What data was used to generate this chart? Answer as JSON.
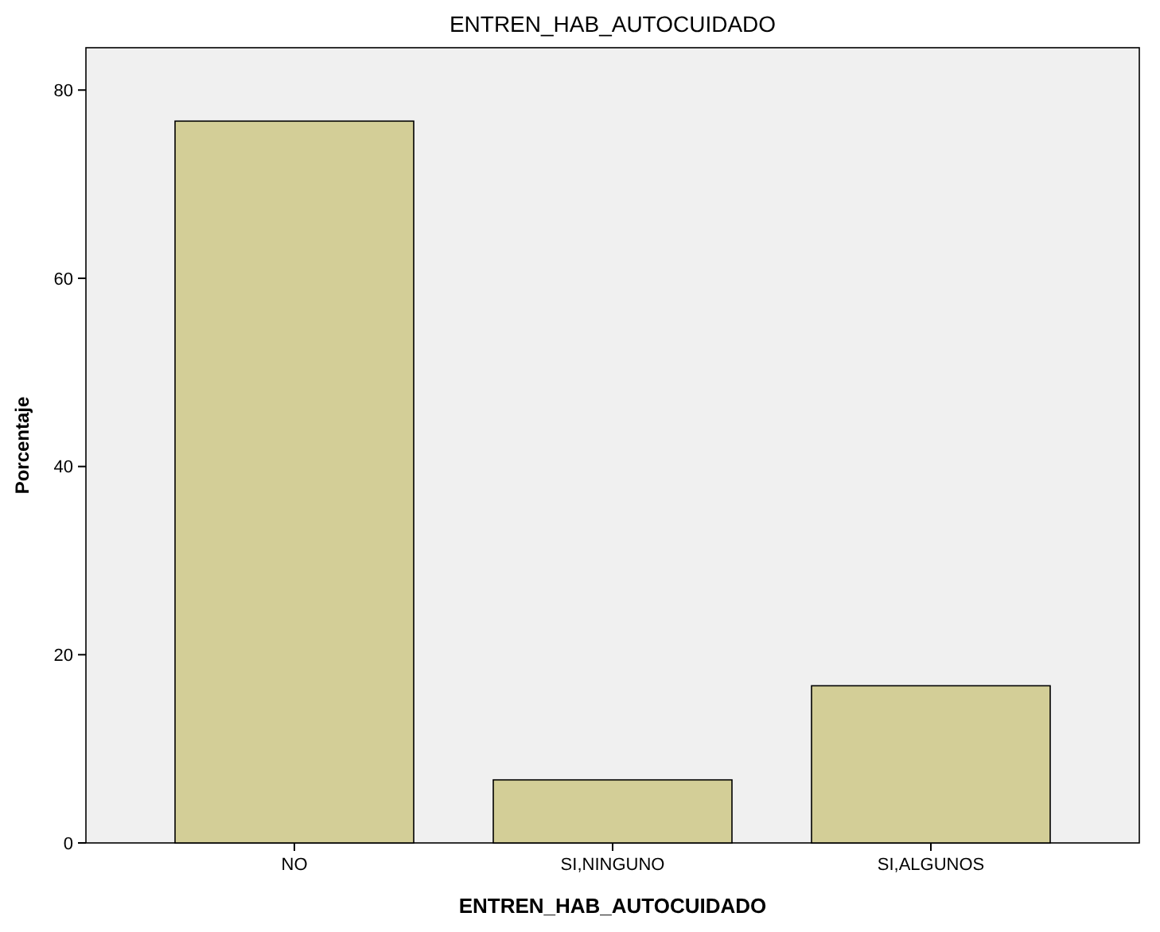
{
  "chart_data": {
    "type": "bar",
    "title": "ENTREN_HAB_AUTOCUIDADO",
    "xlabel": "ENTREN_HAB_AUTOCUIDADO",
    "ylabel": "Porcentaje",
    "categories": [
      "NO",
      "SI,NINGUNO",
      "SI,ALGUNOS"
    ],
    "values": [
      76.7,
      6.7,
      16.7
    ],
    "color": "#d3ce97",
    "ylim": [
      0,
      84.5
    ],
    "yticks": [
      0,
      20,
      40,
      60,
      80
    ],
    "grid": false
  }
}
